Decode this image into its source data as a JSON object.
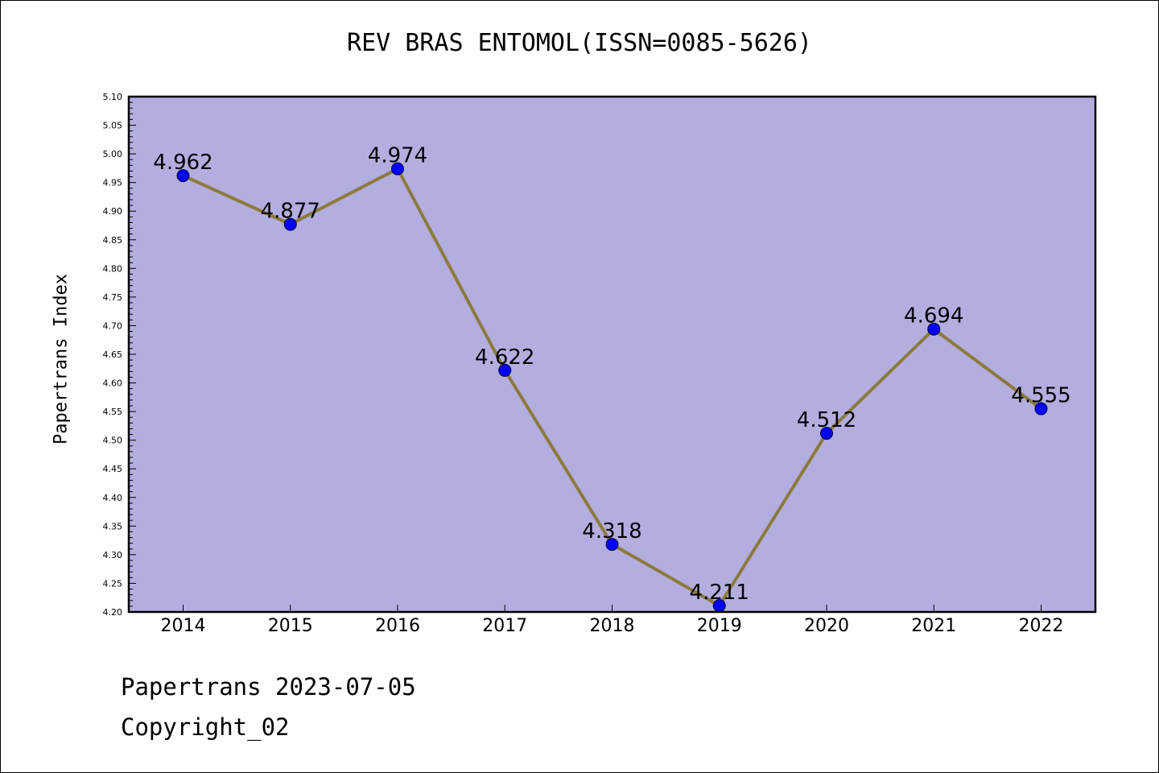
{
  "chart_data": {
    "type": "line",
    "title": "REV BRAS ENTOMOL(ISSN=0085-5626)",
    "xlabel": "",
    "ylabel": "Papertrans Index",
    "categories": [
      "2014",
      "2015",
      "2016",
      "2017",
      "2018",
      "2019",
      "2020",
      "2021",
      "2022"
    ],
    "values": [
      4.962,
      4.877,
      4.974,
      4.622,
      4.318,
      4.211,
      4.512,
      4.694,
      4.555
    ],
    "data_labels": [
      "4.962",
      "4.877",
      "4.974",
      "4.622",
      "4.318",
      "4.211",
      "4.512",
      "4.694",
      "4.555"
    ],
    "ylim": [
      4.2,
      5.1
    ],
    "yticks": [
      "4.20",
      "4.25",
      "4.30",
      "4.35",
      "4.40",
      "4.45",
      "4.50",
      "4.55",
      "4.60",
      "4.65",
      "4.70",
      "4.75",
      "4.80",
      "4.85",
      "4.90",
      "4.95",
      "5.00",
      "5.05",
      "5.10"
    ],
    "grid": false,
    "colors": {
      "plot_background": "#b3aee0",
      "line": "#8c7a3c",
      "marker": "#0000ff"
    }
  },
  "footer": {
    "line1": "Papertrans 2023-07-05",
    "line2": "Copyright_02"
  }
}
